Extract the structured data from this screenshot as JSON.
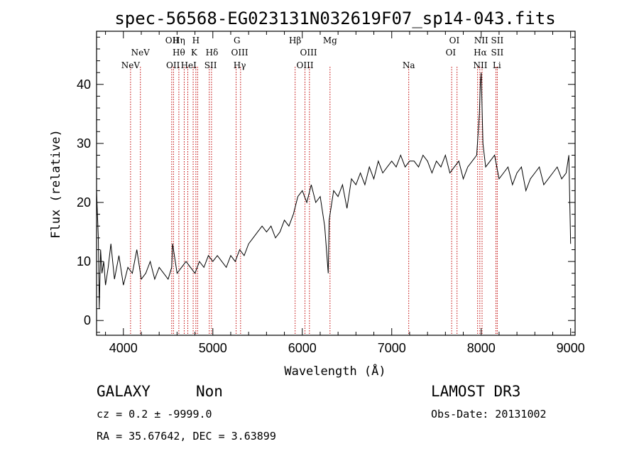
{
  "chart_data": {
    "type": "line",
    "title": "spec-56568-EG023131N032619F07_sp14-043.fits",
    "xlabel": "Wavelength (Å)",
    "ylabel": "Flux (relative)",
    "xlim": [
      3700,
      9050
    ],
    "ylim": [
      -2.5,
      49
    ],
    "x_ticks": [
      4000,
      5000,
      6000,
      7000,
      8000,
      9000
    ],
    "y_ticks": [
      0,
      10,
      20,
      30,
      40
    ],
    "series": [
      {
        "name": "flux",
        "x": [
          3700,
          3720,
          3730,
          3745,
          3760,
          3780,
          3800,
          3830,
          3860,
          3900,
          3950,
          4000,
          4050,
          4100,
          4150,
          4200,
          4250,
          4300,
          4350,
          4400,
          4450,
          4500,
          4540,
          4550,
          4600,
          4650,
          4700,
          4750,
          4800,
          4850,
          4900,
          4950,
          5000,
          5050,
          5100,
          5150,
          5200,
          5250,
          5300,
          5350,
          5400,
          5450,
          5500,
          5550,
          5600,
          5650,
          5700,
          5750,
          5800,
          5850,
          5900,
          5950,
          6000,
          6050,
          6100,
          6150,
          6200,
          6250,
          6290,
          6300,
          6350,
          6400,
          6450,
          6500,
          6550,
          6600,
          6650,
          6700,
          6750,
          6800,
          6850,
          6900,
          6950,
          7000,
          7050,
          7100,
          7150,
          7200,
          7250,
          7300,
          7350,
          7400,
          7450,
          7500,
          7550,
          7600,
          7650,
          7700,
          7750,
          7800,
          7850,
          7900,
          7950,
          7980,
          7990,
          8000,
          8010,
          8020,
          8050,
          8100,
          8150,
          8200,
          8250,
          8300,
          8350,
          8400,
          8450,
          8500,
          8550,
          8600,
          8650,
          8700,
          8750,
          8800,
          8850,
          8900,
          8950,
          8980,
          9000
        ],
        "values": [
          22,
          14,
          2,
          12,
          8,
          10,
          6,
          9,
          13,
          7,
          11,
          6,
          9,
          8,
          12,
          7,
          8,
          10,
          7,
          9,
          8,
          7,
          9,
          13,
          8,
          9,
          10,
          9,
          8,
          10,
          9,
          11,
          10,
          11,
          10,
          9,
          11,
          10,
          12,
          11,
          13,
          14,
          15,
          16,
          15,
          16,
          14,
          15,
          17,
          16,
          18,
          21,
          22,
          20,
          23,
          20,
          21,
          16,
          8,
          17,
          22,
          21,
          23,
          19,
          24,
          23,
          25,
          23,
          26,
          24,
          27,
          25,
          26,
          27,
          26,
          28,
          26,
          27,
          27,
          26,
          28,
          27,
          25,
          27,
          26,
          28,
          25,
          26,
          27,
          24,
          26,
          27,
          28,
          35,
          40,
          42,
          36,
          30,
          26,
          27,
          28,
          24,
          25,
          26,
          23,
          25,
          26,
          22,
          24,
          25,
          26,
          23,
          24,
          25,
          26,
          24,
          25,
          28,
          13
        ]
      }
    ],
    "lines": [
      {
        "name": "NeV",
        "wavelength": 4080,
        "row": 2
      },
      {
        "name": "NeV",
        "wavelength": 4190,
        "row": 1
      },
      {
        "name": "OII",
        "wavelength": 4545,
        "row": 0
      },
      {
        "name": "OII",
        "wavelength": 4555,
        "row": 2
      },
      {
        "name": "Hη",
        "wavelength": 4620,
        "row": 0
      },
      {
        "name": "Hθ",
        "wavelength": 4620,
        "row": 1
      },
      {
        "name": "HeI",
        "wavelength": 4730,
        "row": 2
      },
      {
        "name": "H",
        "wavelength": 4810,
        "row": 0
      },
      {
        "name": "K",
        "wavelength": 4790,
        "row": 1
      },
      {
        "name": "Hδ",
        "wavelength": 4990,
        "row": 1
      },
      {
        "name": "SII",
        "wavelength": 4975,
        "row": 2
      },
      {
        "name": "G",
        "wavelength": 5270,
        "row": 0
      },
      {
        "name": "OIII",
        "wavelength": 5300,
        "row": 1
      },
      {
        "name": "Hγ",
        "wavelength": 5300,
        "row": 2
      },
      {
        "name": "Hβ",
        "wavelength": 5920,
        "row": 0
      },
      {
        "name": "OIII",
        "wavelength": 6070,
        "row": 1
      },
      {
        "name": "OIII",
        "wavelength": 6030,
        "row": 2
      },
      {
        "name": "Mg",
        "wavelength": 6310,
        "row": 0
      },
      {
        "name": "Na",
        "wavelength": 7190,
        "row": 2
      },
      {
        "name": "OI",
        "wavelength": 7700,
        "row": 0
      },
      {
        "name": "OI",
        "wavelength": 7660,
        "row": 1
      },
      {
        "name": "NII",
        "wavelength": 8000,
        "row": 0
      },
      {
        "name": "Hα",
        "wavelength": 7990,
        "row": 1
      },
      {
        "name": "NII",
        "wavelength": 7990,
        "row": 2
      },
      {
        "name": "SII",
        "wavelength": 8180,
        "row": 0
      },
      {
        "name": "SII",
        "wavelength": 8180,
        "row": 1
      },
      {
        "name": "Li",
        "wavelength": 8175,
        "row": 2
      }
    ],
    "line_marker_wavelengths": [
      4080,
      4190,
      4540,
      4560,
      4620,
      4680,
      4720,
      4780,
      4810,
      4830,
      4960,
      4985,
      5260,
      5310,
      5920,
      6030,
      6080,
      6310,
      7190,
      7670,
      7730,
      7960,
      7985,
      8010,
      8165,
      8180
    ]
  },
  "info": {
    "object_type": "GALAXY",
    "subclass": "Non",
    "survey": "LAMOST DR3",
    "cz": "cz = 0.2 ± -9999.0",
    "obs_date": "Obs-Date: 20131002",
    "coords": "RA =  35.67642, DEC =   3.63899"
  },
  "colors": {
    "spectrum": "#000000",
    "marker_line": "#c00000",
    "axes": "#000000",
    "background": "#ffffff"
  }
}
